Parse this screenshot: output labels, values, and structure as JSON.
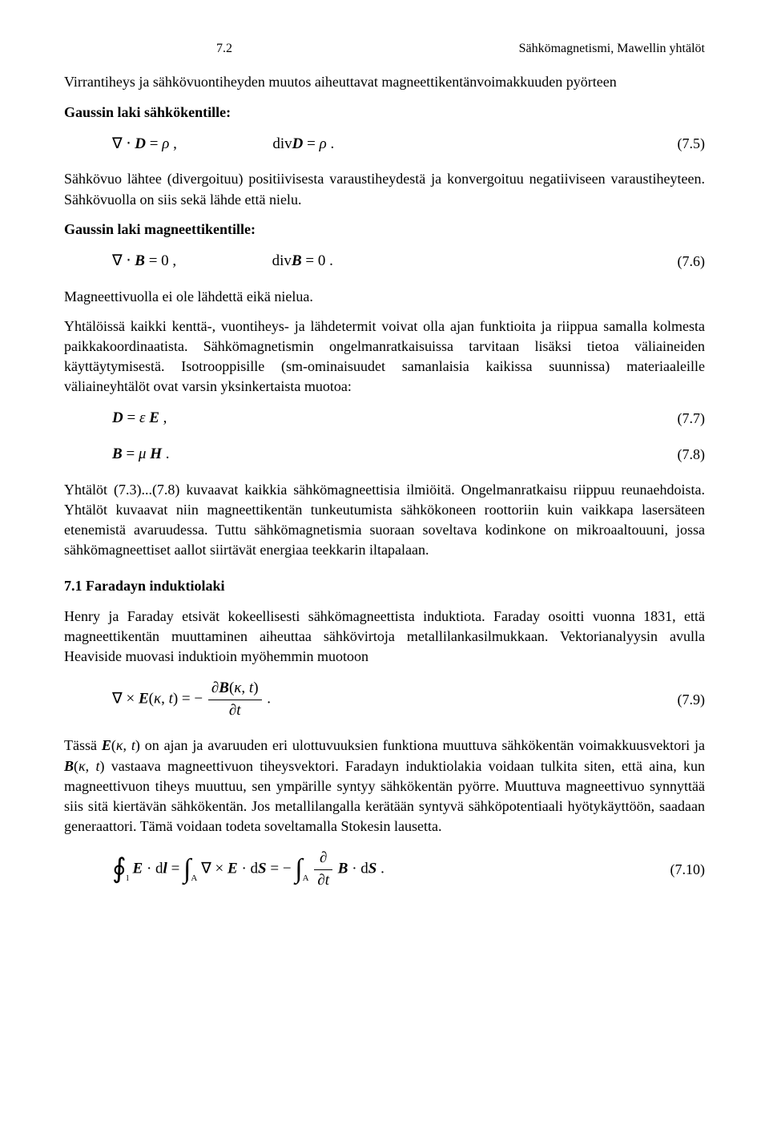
{
  "header": {
    "page_number": "7.2",
    "running_title": "Sähkömagnetismi, Mawellin yhtälöt"
  },
  "p1": "Virrantiheys ja sähkövuontiheyden muutos aiheuttavat magneettikentänvoimakkuuden pyörteen",
  "gauss_e_label": "Gaussin laki sähkökentille:",
  "eq75": {
    "lhs": "∇ · D = ρ ,",
    "rhs": "divD = ρ .",
    "num": "(7.5)"
  },
  "p2": "Sähkövuo lähtee (divergoituu) positiivisesta varaustiheydestä ja konvergoituu negatiiviseen varaustiheyteen. Sähkövuolla on siis sekä lähde että nielu.",
  "gauss_b_label": "Gaussin laki magneettikentille:",
  "eq76": {
    "lhs": "∇ · B = 0 ,",
    "rhs": "divB = 0 .",
    "num": "(7.6)"
  },
  "p3": "Magneettivuolla ei ole lähdettä eikä nielua.",
  "p4": "Yhtälöissä kaikki kenttä-, vuontiheys- ja lähdetermit voivat olla ajan funktioita ja riippua samalla kolmesta paikkakoordinaatista. Sähkömagnetismin ongelmanratkaisuissa tarvitaan lisäksi tietoa väliaineiden käyttäytymisestä. Isotrooppisille (sm-ominaisuudet samanlaisia kaikissa suunnissa) materiaaleille väliaineyhtälöt ovat varsin yksinkertaista muotoa:",
  "eq77": {
    "text": "D = ε E ,",
    "num": "(7.7)"
  },
  "eq78": {
    "text": "B = μ H .",
    "num": "(7.8)"
  },
  "p5": "Yhtälöt (7.3)...(7.8) kuvaavat kaikkia sähkömagneettisia ilmiöitä. Ongelmanratkaisu riippuu reunaehdoista. Yhtälöt kuvaavat niin magneettikentän tunkeutumista sähkökoneen roottoriin kuin vaikkapa lasersäteen etenemistä avaruudessa. Tuttu sähkömagnetismia suoraan soveltava kodinkone on mikroaaltouuni, jossa sähkömagneettiset aallot siirtävät energiaa teekkarin iltapalaan.",
  "section71": "7.1 Faradayn induktiolaki",
  "p6": "Henry ja Faraday etsivät kokeellisesti sähkömagneettista induktiota. Faraday osoitti vuonna 1831, että magneettikentän muuttaminen aiheuttaa sähkövirtoja metallilankasilmukkaan. Vektorianalyysin avulla Heaviside muovasi induktioin myöhemmin muotoon",
  "eq79": {
    "lead": "∇ × E(κ, t) = − ",
    "frac_num": "∂B(κ, t)",
    "frac_den": "∂t",
    "tail": ".",
    "num": "(7.9)"
  },
  "p7_a": "Tässä ",
  "p7_ek": "E(κ, t)",
  "p7_b": " on ajan ja avaruuden eri ulottuvuuksien funktiona muuttuva sähkökentän voimakkuusvektori ja ",
  "p7_bk": "B(κ, t)",
  "p7_c": " vastaava magneettivuon tiheysvektori. Faradayn induktiolakia voidaan tulkita siten, että aina, kun magneettivuon tiheys muuttuu, sen ympärille syntyy sähkökentän pyörre. Muuttuva magneettivuo synnyttää siis sitä kiertävän sähkökentän. Jos metallilangalla kerätään syntyvä sähköpotentiaali hyötykäyttöön, saadaan generaattori. Tämä voidaan todeta soveltamalla Stokesin lausetta.",
  "eq710": {
    "num": "(7.10)"
  }
}
